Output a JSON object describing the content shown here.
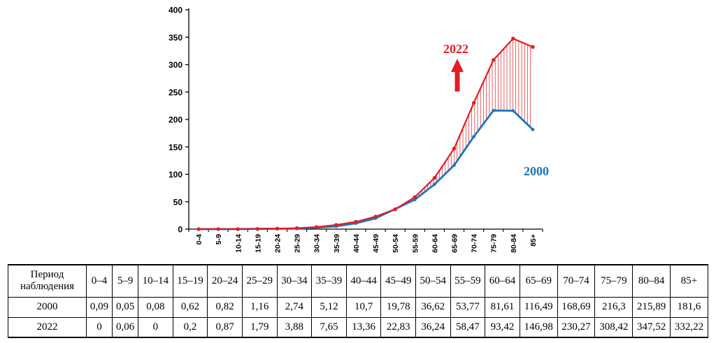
{
  "chart": {
    "colors": {
      "red": "#e31e24",
      "blue": "#1b75bc",
      "axis": "#000000"
    }
  },
  "chart_data": {
    "type": "line",
    "categories": [
      "0-4",
      "5-9",
      "10-14",
      "15-19",
      "20-24",
      "25-29",
      "30-34",
      "35-39",
      "40-44",
      "45-49",
      "50-54",
      "55-59",
      "60-64",
      "65-69",
      "70-74",
      "75-79",
      "80-84",
      "85+"
    ],
    "series": [
      {
        "name": "2000",
        "color": "#1b75bc",
        "values": [
          0.09,
          0.05,
          0.08,
          0.62,
          0.82,
          1.16,
          2.74,
          5.12,
          10.7,
          19.78,
          36.62,
          53.77,
          81.61,
          116.49,
          168.69,
          216.3,
          215.89,
          181.6
        ]
      },
      {
        "name": "2022",
        "color": "#e31e24",
        "values": [
          0,
          0.06,
          0,
          0.2,
          0.87,
          1.79,
          3.88,
          7.65,
          13.36,
          22.83,
          36.24,
          58.47,
          93.42,
          146.98,
          230.27,
          308.42,
          347.52,
          332.22
        ]
      }
    ],
    "title": "",
    "xlabel": "",
    "ylabel": "",
    "ylim": [
      0,
      400
    ],
    "y_ticks": [
      0,
      50,
      100,
      150,
      200,
      250,
      300,
      350,
      400
    ],
    "grid": false,
    "legend_position": "inline-annotations",
    "fill_between": "vertical red hatch lines between 2000 and 2022 curves",
    "annotations": {
      "label_2022": "2022",
      "label_2000": "2000"
    }
  },
  "table": {
    "header_label": "Период наблюдения",
    "columns": [
      "0–4",
      "5–9",
      "10–14",
      "15–19",
      "20–24",
      "25–29",
      "30–34",
      "35–39",
      "40–44",
      "45–49",
      "50–54",
      "55–59",
      "60–64",
      "65–69",
      "70–74",
      "75–79",
      "80–84",
      "85+"
    ],
    "rows": [
      {
        "label": "2000",
        "values": [
          "0,09",
          "0,05",
          "0,08",
          "0,62",
          "0,82",
          "1,16",
          "2,74",
          "5,12",
          "10,7",
          "19,78",
          "36,62",
          "53,77",
          "81,61",
          "116,49",
          "168,69",
          "216,3",
          "215,89",
          "181,6"
        ]
      },
      {
        "label": "2022",
        "values": [
          "0",
          "0,06",
          "0",
          "0,2",
          "0,87",
          "1,79",
          "3,88",
          "7,65",
          "13,36",
          "22,83",
          "36,24",
          "58,47",
          "93,42",
          "146,98",
          "230,27",
          "308,42",
          "347,52",
          "332,22"
        ]
      }
    ]
  }
}
